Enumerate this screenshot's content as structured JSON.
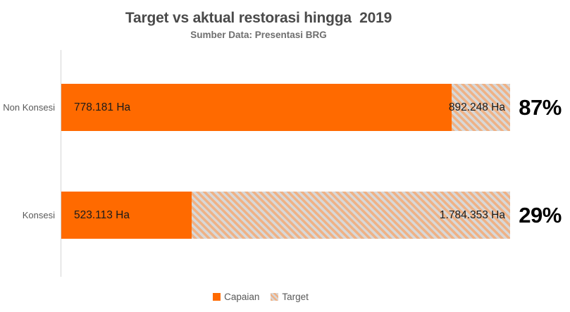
{
  "header": {
    "title": "Target vs aktual restorasi hingga  2019",
    "subtitle": "Sumber Data: Presentasi BRG"
  },
  "rows": [
    {
      "category": "Non Konsesi",
      "capaian_label": "778.181 Ha",
      "target_label": "892.248 Ha",
      "percent_label": "87%",
      "capaian_pct_of_target": 87
    },
    {
      "category": "Konsesi",
      "capaian_label": "523.113 Ha",
      "target_label": "1.784.353 Ha",
      "percent_label": "29%",
      "capaian_pct_of_target": 29
    }
  ],
  "legend": {
    "items": [
      {
        "label": "Capaian",
        "swatch": "orange-solid"
      },
      {
        "label": "Target",
        "swatch": "orange-gray-hatched"
      }
    ]
  },
  "colors": {
    "capaian": "#FF6A00",
    "target_hatch_stripe": "#EFB286",
    "target_hatch_base": "#D8D8D8",
    "axis_line": "#D4D4D4",
    "title_text": "#4A4A4A",
    "subtitle_text": "#6E6E6E",
    "category_text": "#595959",
    "value_text": "#1A1A1A",
    "percent_text": "#000000"
  },
  "chart_data": {
    "type": "bar",
    "orientation": "horizontal",
    "title": "Target vs aktual restorasi hingga 2019",
    "subtitle": "Sumber Data: Presentasi BRG",
    "categories": [
      "Non Konsesi",
      "Konsesi"
    ],
    "series": [
      {
        "name": "Capaian",
        "values": [
          778181,
          523113
        ]
      },
      {
        "name": "Target",
        "values": [
          892248,
          1784353
        ]
      }
    ],
    "value_unit": "Ha",
    "value_labels": {
      "capaian": [
        "778.181 Ha",
        "523.113 Ha"
      ],
      "target": [
        "892.248 Ha",
        "1.784.353 Ha"
      ]
    },
    "percent_of_target": [
      87,
      29
    ],
    "percent_labels": [
      "87%",
      "29%"
    ],
    "legend_position": "bottom",
    "grid": false,
    "bar_style": "each target bar rendered at equal full width; capaian overlaid as percent-of-target fill"
  }
}
